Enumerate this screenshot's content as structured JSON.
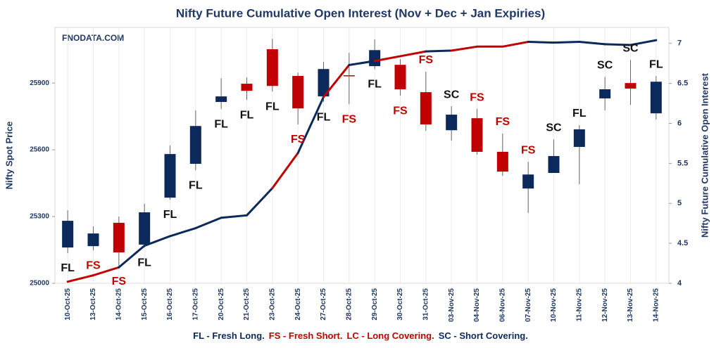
{
  "chart_data": {
    "type": "candlestick",
    "title": "Nifty Future Cumulative Open Interest (Nov + Dec + Jan Expiries)",
    "watermark": "FNODATA.COM",
    "y_label": "Nifty Spot Price",
    "y2_label": "Nifty Future Cumulative Open Interest",
    "categories": [
      "10-Oct-25",
      "13-Oct-25",
      "14-Oct-25",
      "15-Oct-25",
      "16-Oct-25",
      "17-Oct-25",
      "20-Oct-25",
      "21-Oct-25",
      "23-Oct-25",
      "24-Oct-25",
      "27-Oct-25",
      "28-Oct-25",
      "29-Oct-25",
      "30-Oct-25",
      "31-Oct-25",
      "03-Nov-25",
      "04-Nov-25",
      "06-Nov-25",
      "07-Nov-25",
      "10-Nov-25",
      "11-Nov-25",
      "12-Nov-25",
      "13-Nov-25",
      "14-Nov-25"
    ],
    "open": [
      25161,
      25167,
      25272,
      25174,
      25385,
      25537,
      25815,
      25897,
      26052,
      25932,
      25840,
      25935,
      25976,
      25982,
      25859,
      25688,
      25742,
      25591,
      25426,
      25496,
      25613,
      25831,
      25900,
      25764
    ],
    "high": [
      25328,
      25256,
      25300,
      25357,
      25619,
      25777,
      25922,
      25925,
      26099,
      25947,
      25995,
      26036,
      26096,
      26007,
      25951,
      25796,
      25783,
      25673,
      25546,
      25647,
      25711,
      25928,
      26004,
      25931
    ],
    "low": [
      25136,
      25148,
      25066,
      25161,
      25376,
      25508,
      25783,
      25824,
      25862,
      25714,
      25815,
      25805,
      25963,
      25843,
      25685,
      25641,
      25578,
      25483,
      25316,
      25496,
      25445,
      25777,
      25802,
      25736
    ],
    "close": [
      25281,
      25224,
      25139,
      25319,
      25581,
      25707,
      25840,
      25865,
      25887,
      25786,
      25963,
      25934,
      26048,
      25872,
      25714,
      25758,
      25591,
      25502,
      25489,
      25572,
      25692,
      25872,
      25875,
      25906
    ],
    "up_color": "#0b2a5b",
    "down_color": "#c00000",
    "oi": {
      "axis": "y2",
      "values": [
        4.02,
        4.1,
        4.2,
        4.47,
        4.59,
        4.69,
        4.82,
        4.85,
        5.19,
        5.63,
        6.33,
        6.73,
        6.78,
        6.84,
        6.9,
        6.91,
        6.96,
        6.96,
        7.02,
        7.01,
        7.02,
        6.99,
        6.98,
        7.04
      ]
    },
    "signals": [
      "FL",
      "FS",
      "FS",
      "FL",
      "FL",
      "FL",
      "FL",
      "FL",
      "FL",
      "FS",
      "FL",
      "FS",
      "FL",
      "FS",
      "FS",
      "SC",
      "FS",
      "FS",
      "FS",
      "SC",
      "FL",
      "SC",
      "SC",
      "FL"
    ],
    "ylim": [
      25000,
      26150
    ],
    "yticks": [
      25000,
      25300,
      25600,
      25900
    ],
    "y2lim": [
      4,
      7.2
    ],
    "y2ticks": [
      4,
      4.5,
      5,
      5.5,
      6,
      6.5,
      7
    ],
    "legend": [
      {
        "text": "FL - Fresh Long.",
        "color": "#0b2a5b"
      },
      {
        "text": "FS - Fresh Short.",
        "color": "#c00000"
      },
      {
        "text": "LC - Long Covering.",
        "color": "#c00000"
      },
      {
        "text": "SC - Short Covering.",
        "color": "#0b2a5b"
      }
    ]
  }
}
